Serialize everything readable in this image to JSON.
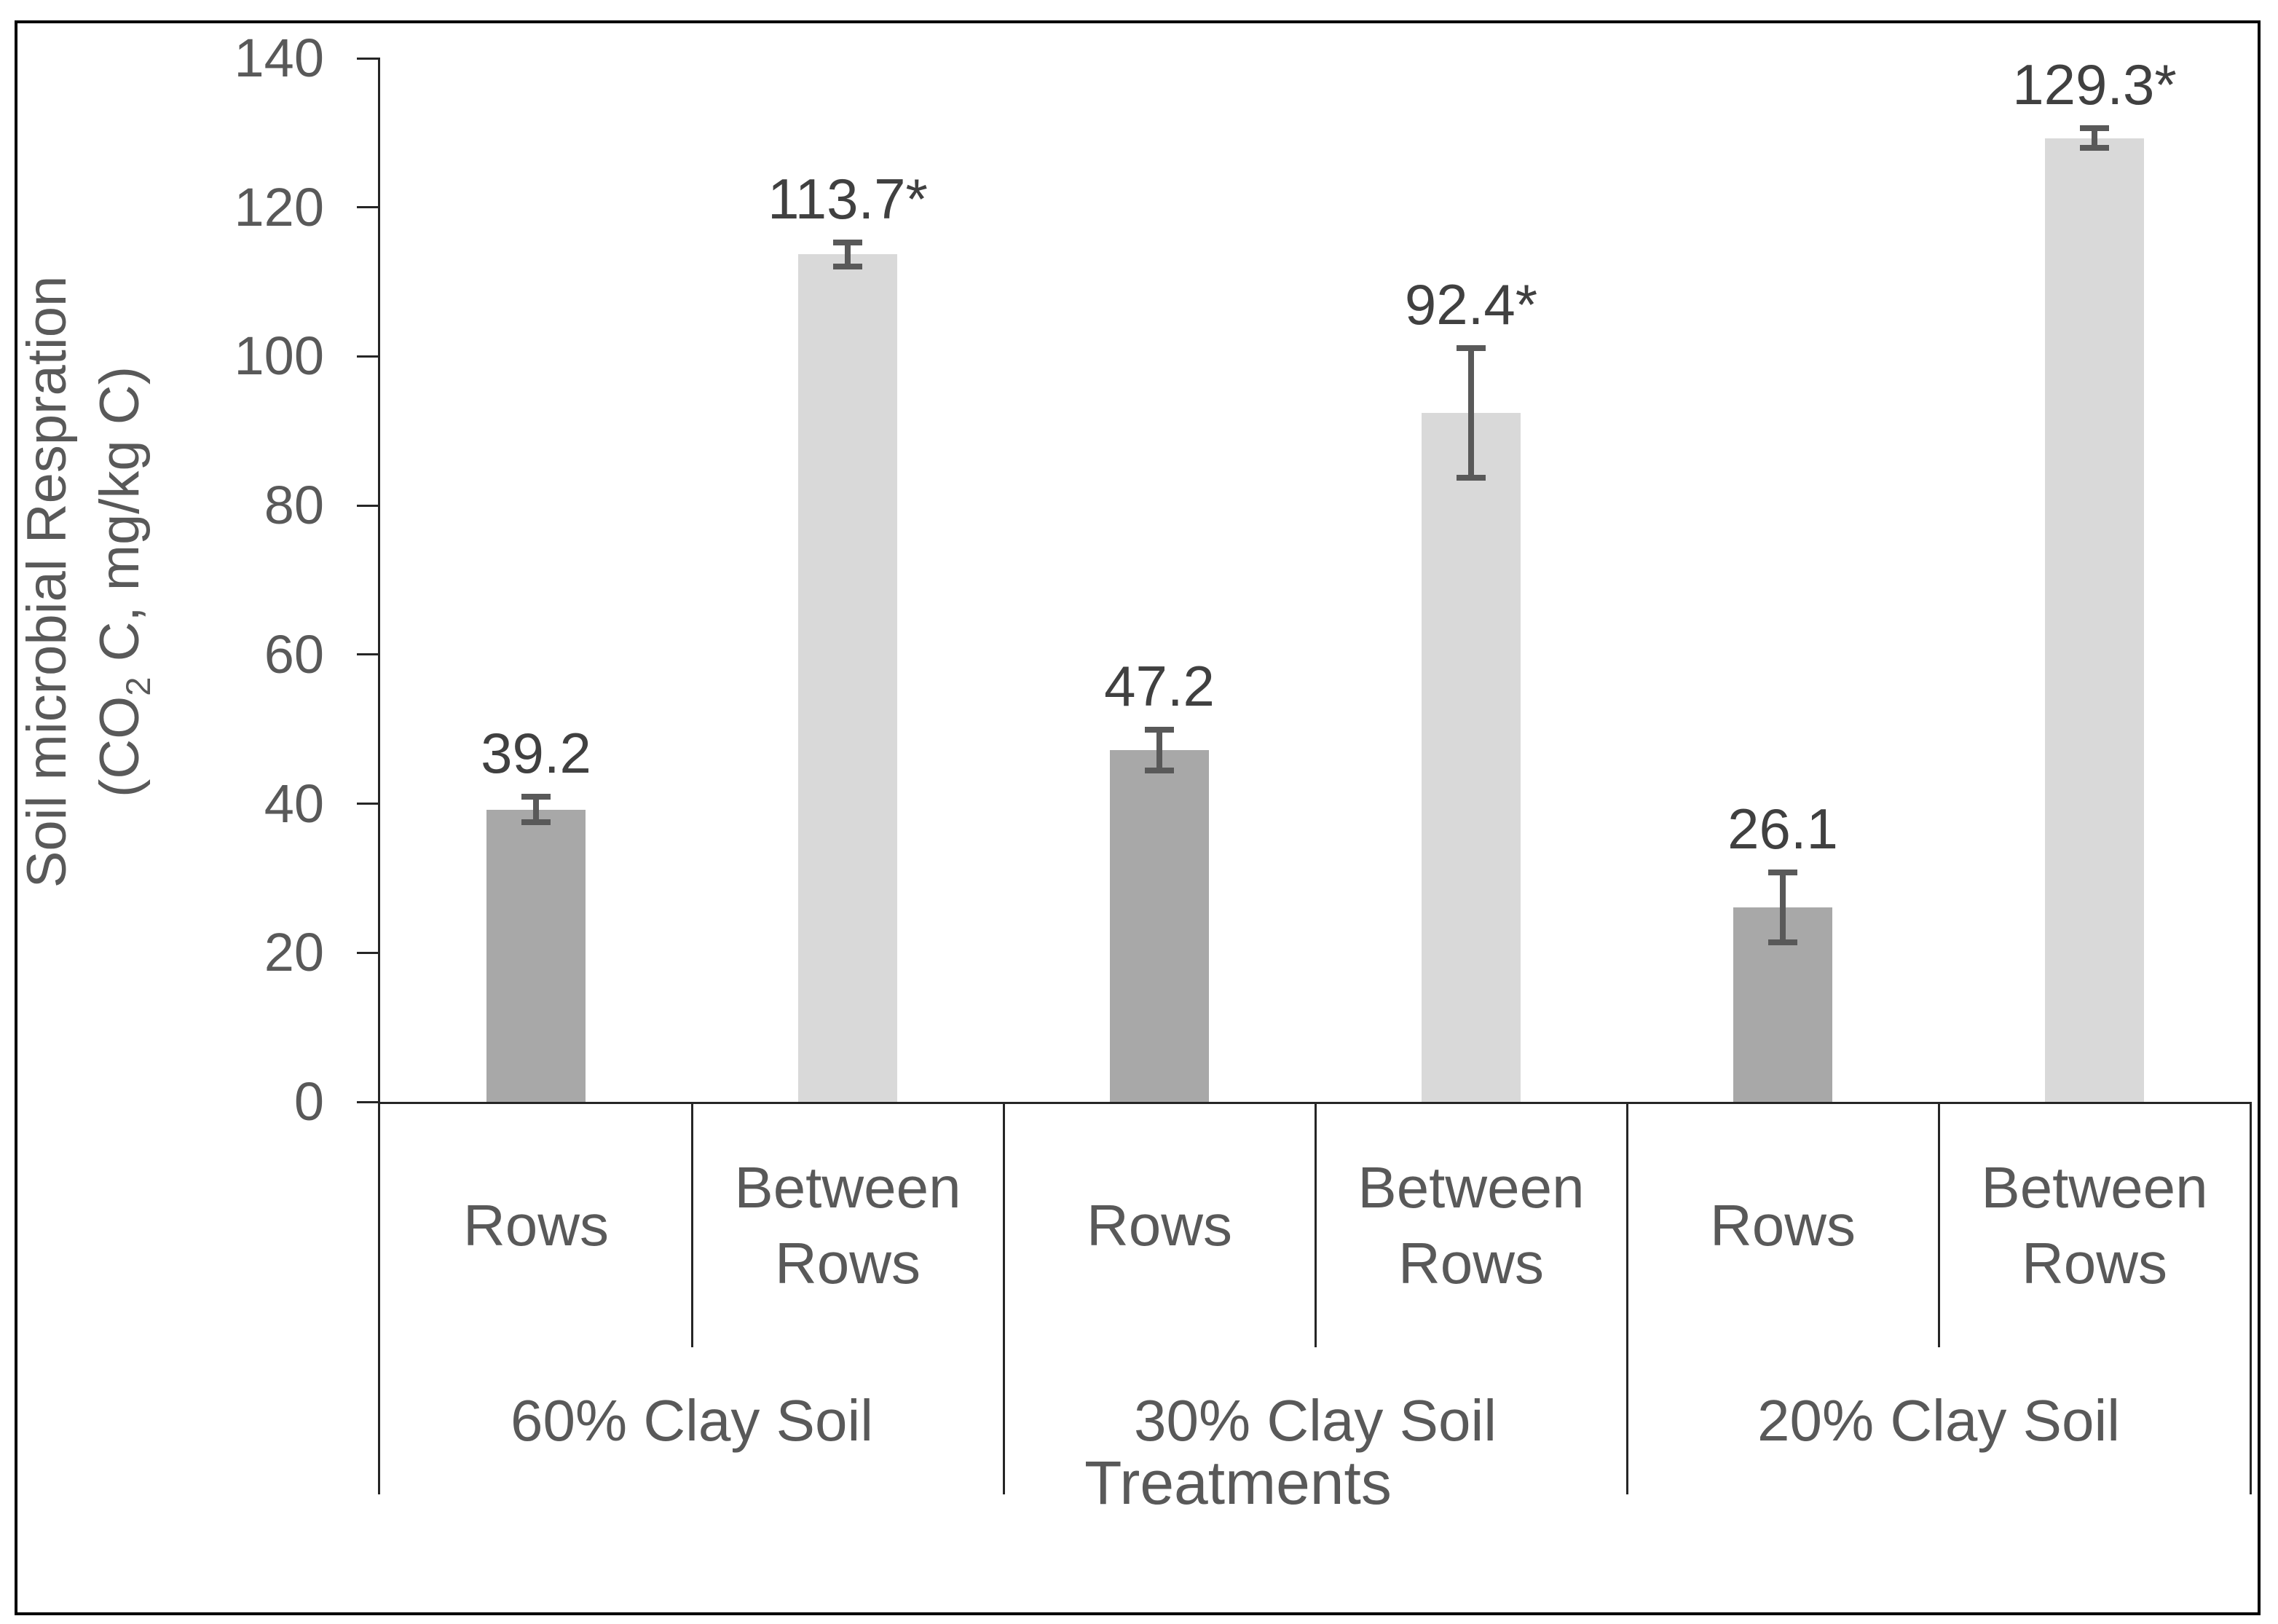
{
  "chart_data": {
    "type": "bar",
    "title": "",
    "xlabel": "Treatments",
    "ylabel": "Soil microbial Respration (CO2 C, mg/kg C)",
    "ylabel_line1": "Soil microbial Respration",
    "ylabel_line2_pre": "(CO",
    "ylabel_line2_sub": "2",
    "ylabel_line2_post": " C, mg/kg C)",
    "ylim": [
      0,
      140
    ],
    "yticks": [
      0,
      20,
      40,
      60,
      80,
      100,
      120,
      140
    ],
    "grid": false,
    "legend": "none",
    "categories": [
      "60% Clay Soil",
      "30% Clay Soil",
      "20% Clay Soil"
    ],
    "series": [
      {
        "name": "Rows",
        "values": [
          39.2,
          47.2,
          26.1
        ],
        "errors": [
          1.7,
          2.7,
          4.7
        ],
        "color": "#a8a8a8"
      },
      {
        "name": "Between Rows",
        "values": [
          113.7,
          92.4,
          129.3
        ],
        "errors": [
          1.6,
          8.7,
          1.3
        ],
        "color": "#d9d9d9"
      }
    ],
    "bars": [
      {
        "group": "60% Clay Soil",
        "category": "Rows",
        "value": 39.2,
        "label": "39.2",
        "error": 1.7,
        "series": "Rows"
      },
      {
        "group": "60% Clay Soil",
        "category": "Between Rows",
        "value": 113.7,
        "label": "113.7*",
        "error": 1.6,
        "series": "Between Rows"
      },
      {
        "group": "30% Clay Soil",
        "category": "Rows",
        "value": 47.2,
        "label": "47.2",
        "error": 2.7,
        "series": "Rows"
      },
      {
        "group": "30% Clay Soil",
        "category": "Between Rows",
        "value": 92.4,
        "label": "92.4*",
        "error": 8.7,
        "series": "Between Rows"
      },
      {
        "group": "20% Clay Soil",
        "category": "Rows",
        "value": 26.1,
        "label": "26.1",
        "error": 4.7,
        "series": "Rows"
      },
      {
        "group": "20% Clay Soil",
        "category": "Between Rows",
        "value": 129.3,
        "label": "129.3*",
        "error": 1.3,
        "series": "Between Rows"
      }
    ],
    "colors": {
      "bar_rows": "#a8a8a8",
      "bar_between_rows": "#d9d9d9",
      "error_bar": "#595959",
      "axis_line": "#262626",
      "axis_text": "#595959",
      "data_label_text": "#404040",
      "border": "#000000",
      "background": "#ffffff"
    }
  }
}
